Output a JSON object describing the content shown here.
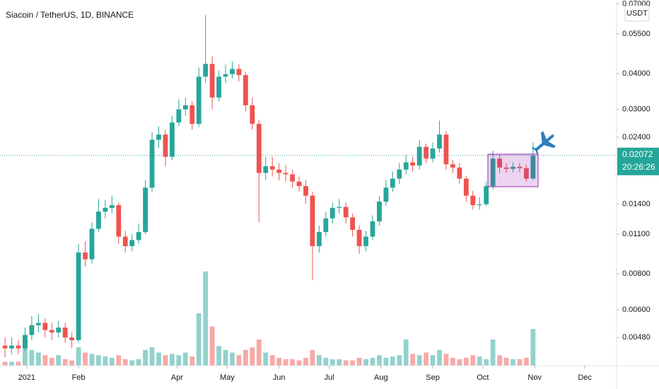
{
  "chart_data": {
    "type": "candlestick",
    "title": "Siacoin / TetherUS, 1D, BINANCE",
    "currency": "USDT",
    "log_scale": true,
    "up_color": "#26a69a",
    "down_color": "#ef5350",
    "x": [
      2,
      6,
      10,
      14,
      18,
      22,
      26,
      30,
      34,
      38,
      42,
      46,
      50,
      54,
      58,
      62,
      66,
      70,
      74,
      78,
      82,
      86,
      90,
      94,
      98,
      102,
      106,
      110,
      114,
      118,
      122,
      126,
      130,
      134,
      138,
      142,
      146,
      150,
      154,
      158,
      162,
      166,
      170,
      174,
      178,
      182,
      186,
      190,
      194,
      198,
      202,
      206,
      210,
      214,
      218,
      222,
      226,
      230,
      234,
      238,
      242,
      246,
      250,
      254,
      258,
      262,
      266,
      270,
      274,
      278,
      282,
      286,
      290,
      294,
      298,
      302,
      306,
      310,
      314,
      318
    ],
    "open": [
      0.0045,
      0.0044,
      0.0045,
      0.0044,
      0.0049,
      0.0053,
      0.0054,
      0.0051,
      0.005,
      0.0052,
      0.0048,
      0.0047,
      0.0095,
      0.009,
      0.0115,
      0.0132,
      0.0136,
      0.0139,
      0.0108,
      0.01,
      0.0105,
      0.0112,
      0.016,
      0.0235,
      0.0245,
      0.0205,
      0.027,
      0.03,
      0.031,
      0.0267,
      0.039,
      0.0432,
      0.033,
      0.039,
      0.0398,
      0.0415,
      0.0395,
      0.031,
      0.0267,
      0.018,
      0.019,
      0.0185,
      0.018,
      0.0178,
      0.0168,
      0.0162,
      0.015,
      0.01,
      0.0112,
      0.0125,
      0.0136,
      0.0137,
      0.0126,
      0.0114,
      0.01,
      0.0108,
      0.0122,
      0.0143,
      0.016,
      0.0172,
      0.0185,
      0.0196,
      0.0191,
      0.0222,
      0.0202,
      0.0219,
      0.0245,
      0.0193,
      0.0188,
      0.0172,
      0.015,
      0.0139,
      0.014,
      0.0162,
      0.0202,
      0.0188,
      0.0186,
      0.0189,
      0.0187,
      0.0172
    ],
    "high": [
      0.0048,
      0.0048,
      0.0047,
      0.0052,
      0.0057,
      0.0058,
      0.0056,
      0.0054,
      0.0055,
      0.0054,
      0.005,
      0.0102,
      0.0104,
      0.0121,
      0.0146,
      0.0145,
      0.015,
      0.0142,
      0.0113,
      0.011,
      0.012,
      0.017,
      0.025,
      0.0262,
      0.0255,
      0.0285,
      0.0325,
      0.033,
      0.032,
      0.042,
      0.064,
      0.046,
      0.041,
      0.043,
      0.044,
      0.043,
      0.0405,
      0.033,
      0.0275,
      0.0205,
      0.0205,
      0.0195,
      0.0192,
      0.0185,
      0.0175,
      0.017,
      0.0155,
      0.0118,
      0.0132,
      0.0142,
      0.0146,
      0.0142,
      0.013,
      0.0118,
      0.0113,
      0.0128,
      0.015,
      0.017,
      0.0182,
      0.0195,
      0.0208,
      0.0205,
      0.0235,
      0.0228,
      0.023,
      0.0274,
      0.0252,
      0.02,
      0.0195,
      0.0176,
      0.0156,
      0.0148,
      0.0168,
      0.0215,
      0.021,
      0.0195,
      0.0196,
      0.0195,
      0.0192,
      0.023
    ],
    "low": [
      0.0041,
      0.0042,
      0.0042,
      0.0043,
      0.0047,
      0.005,
      0.0048,
      0.0047,
      0.0048,
      0.0046,
      0.0044,
      0.0046,
      0.0085,
      0.0087,
      0.0112,
      0.0125,
      0.013,
      0.0102,
      0.0095,
      0.0096,
      0.0102,
      0.011,
      0.0155,
      0.022,
      0.019,
      0.02,
      0.0262,
      0.0285,
      0.0255,
      0.026,
      0.037,
      0.03,
      0.032,
      0.037,
      0.0385,
      0.0375,
      0.0295,
      0.0255,
      0.0121,
      0.017,
      0.0175,
      0.017,
      0.0168,
      0.016,
      0.0155,
      0.014,
      0.0076,
      0.0095,
      0.0108,
      0.012,
      0.013,
      0.012,
      0.0108,
      0.0094,
      0.0096,
      0.0105,
      0.0118,
      0.0138,
      0.0155,
      0.0165,
      0.0178,
      0.0182,
      0.0185,
      0.0195,
      0.0196,
      0.0212,
      0.0185,
      0.018,
      0.0165,
      0.0143,
      0.0134,
      0.0134,
      0.0138,
      0.0158,
      0.018,
      0.018,
      0.0181,
      0.0181,
      0.0168,
      0.017
    ],
    "close": [
      0.0044,
      0.0045,
      0.0044,
      0.0049,
      0.0053,
      0.0054,
      0.0051,
      0.005,
      0.0052,
      0.0048,
      0.0047,
      0.0095,
      0.009,
      0.0115,
      0.0132,
      0.0136,
      0.0139,
      0.0108,
      0.01,
      0.0105,
      0.0112,
      0.016,
      0.0235,
      0.0245,
      0.0205,
      0.027,
      0.03,
      0.031,
      0.0267,
      0.039,
      0.0432,
      0.033,
      0.039,
      0.0398,
      0.0415,
      0.0395,
      0.031,
      0.0267,
      0.018,
      0.019,
      0.0185,
      0.018,
      0.0178,
      0.0168,
      0.0162,
      0.015,
      0.01,
      0.0112,
      0.0125,
      0.0136,
      0.0137,
      0.0126,
      0.0114,
      0.01,
      0.0108,
      0.0122,
      0.0143,
      0.016,
      0.0172,
      0.0185,
      0.0196,
      0.0191,
      0.0222,
      0.0202,
      0.0219,
      0.0245,
      0.0193,
      0.0188,
      0.0172,
      0.015,
      0.0139,
      0.014,
      0.0162,
      0.0202,
      0.0188,
      0.0186,
      0.0189,
      0.0187,
      0.0172,
      0.02072
    ],
    "volume": [
      3,
      3,
      3,
      20,
      12,
      10,
      8,
      6,
      8,
      5,
      4,
      14,
      10,
      9,
      8,
      7,
      6,
      8,
      5,
      4,
      5,
      12,
      14,
      10,
      8,
      9,
      8,
      10,
      7,
      40,
      72,
      30,
      15,
      12,
      10,
      8,
      12,
      14,
      20,
      10,
      8,
      6,
      5,
      5,
      4,
      6,
      12,
      8,
      6,
      5,
      5,
      4,
      4,
      6,
      5,
      6,
      8,
      6,
      7,
      8,
      20,
      9,
      8,
      10,
      8,
      12,
      9,
      6,
      5,
      6,
      8,
      7,
      5,
      20,
      8,
      6,
      5,
      5,
      6,
      28
    ],
    "volume_ylim": [
      0,
      100
    ],
    "xlim": [
      -1,
      368
    ],
    "xticks": [
      {
        "value": 15,
        "label": "2021"
      },
      {
        "value": 46,
        "label": "Feb"
      },
      {
        "value": 105,
        "label": "Apr"
      },
      {
        "value": 135,
        "label": "May"
      },
      {
        "value": 166,
        "label": "Jun"
      },
      {
        "value": 196,
        "label": "Jul"
      },
      {
        "value": 227,
        "label": "Aug"
      },
      {
        "value": 258,
        "label": "Sep"
      },
      {
        "value": 288,
        "label": "Oct"
      },
      {
        "value": 319,
        "label": "Nov"
      },
      {
        "value": 349,
        "label": "Dec"
      }
    ],
    "ylim": [
      0.00383,
      0.0722
    ],
    "yticks": [
      {
        "value": 0.07,
        "label": "0.07000"
      },
      {
        "value": 0.055,
        "label": "0.05500"
      },
      {
        "value": 0.04,
        "label": "0.04000"
      },
      {
        "value": 0.03,
        "label": "0.03000"
      },
      {
        "value": 0.024,
        "label": "0.02400"
      },
      {
        "value": 0.014,
        "label": "0.01400"
      },
      {
        "value": 0.011,
        "label": "0.01100"
      },
      {
        "value": 0.008,
        "label": "0.00800"
      },
      {
        "value": 0.006,
        "label": "0.00600"
      },
      {
        "value": 0.0048,
        "label": "0.00480"
      }
    ],
    "last_price": 0.02072,
    "countdown": "20:26:26"
  }
}
